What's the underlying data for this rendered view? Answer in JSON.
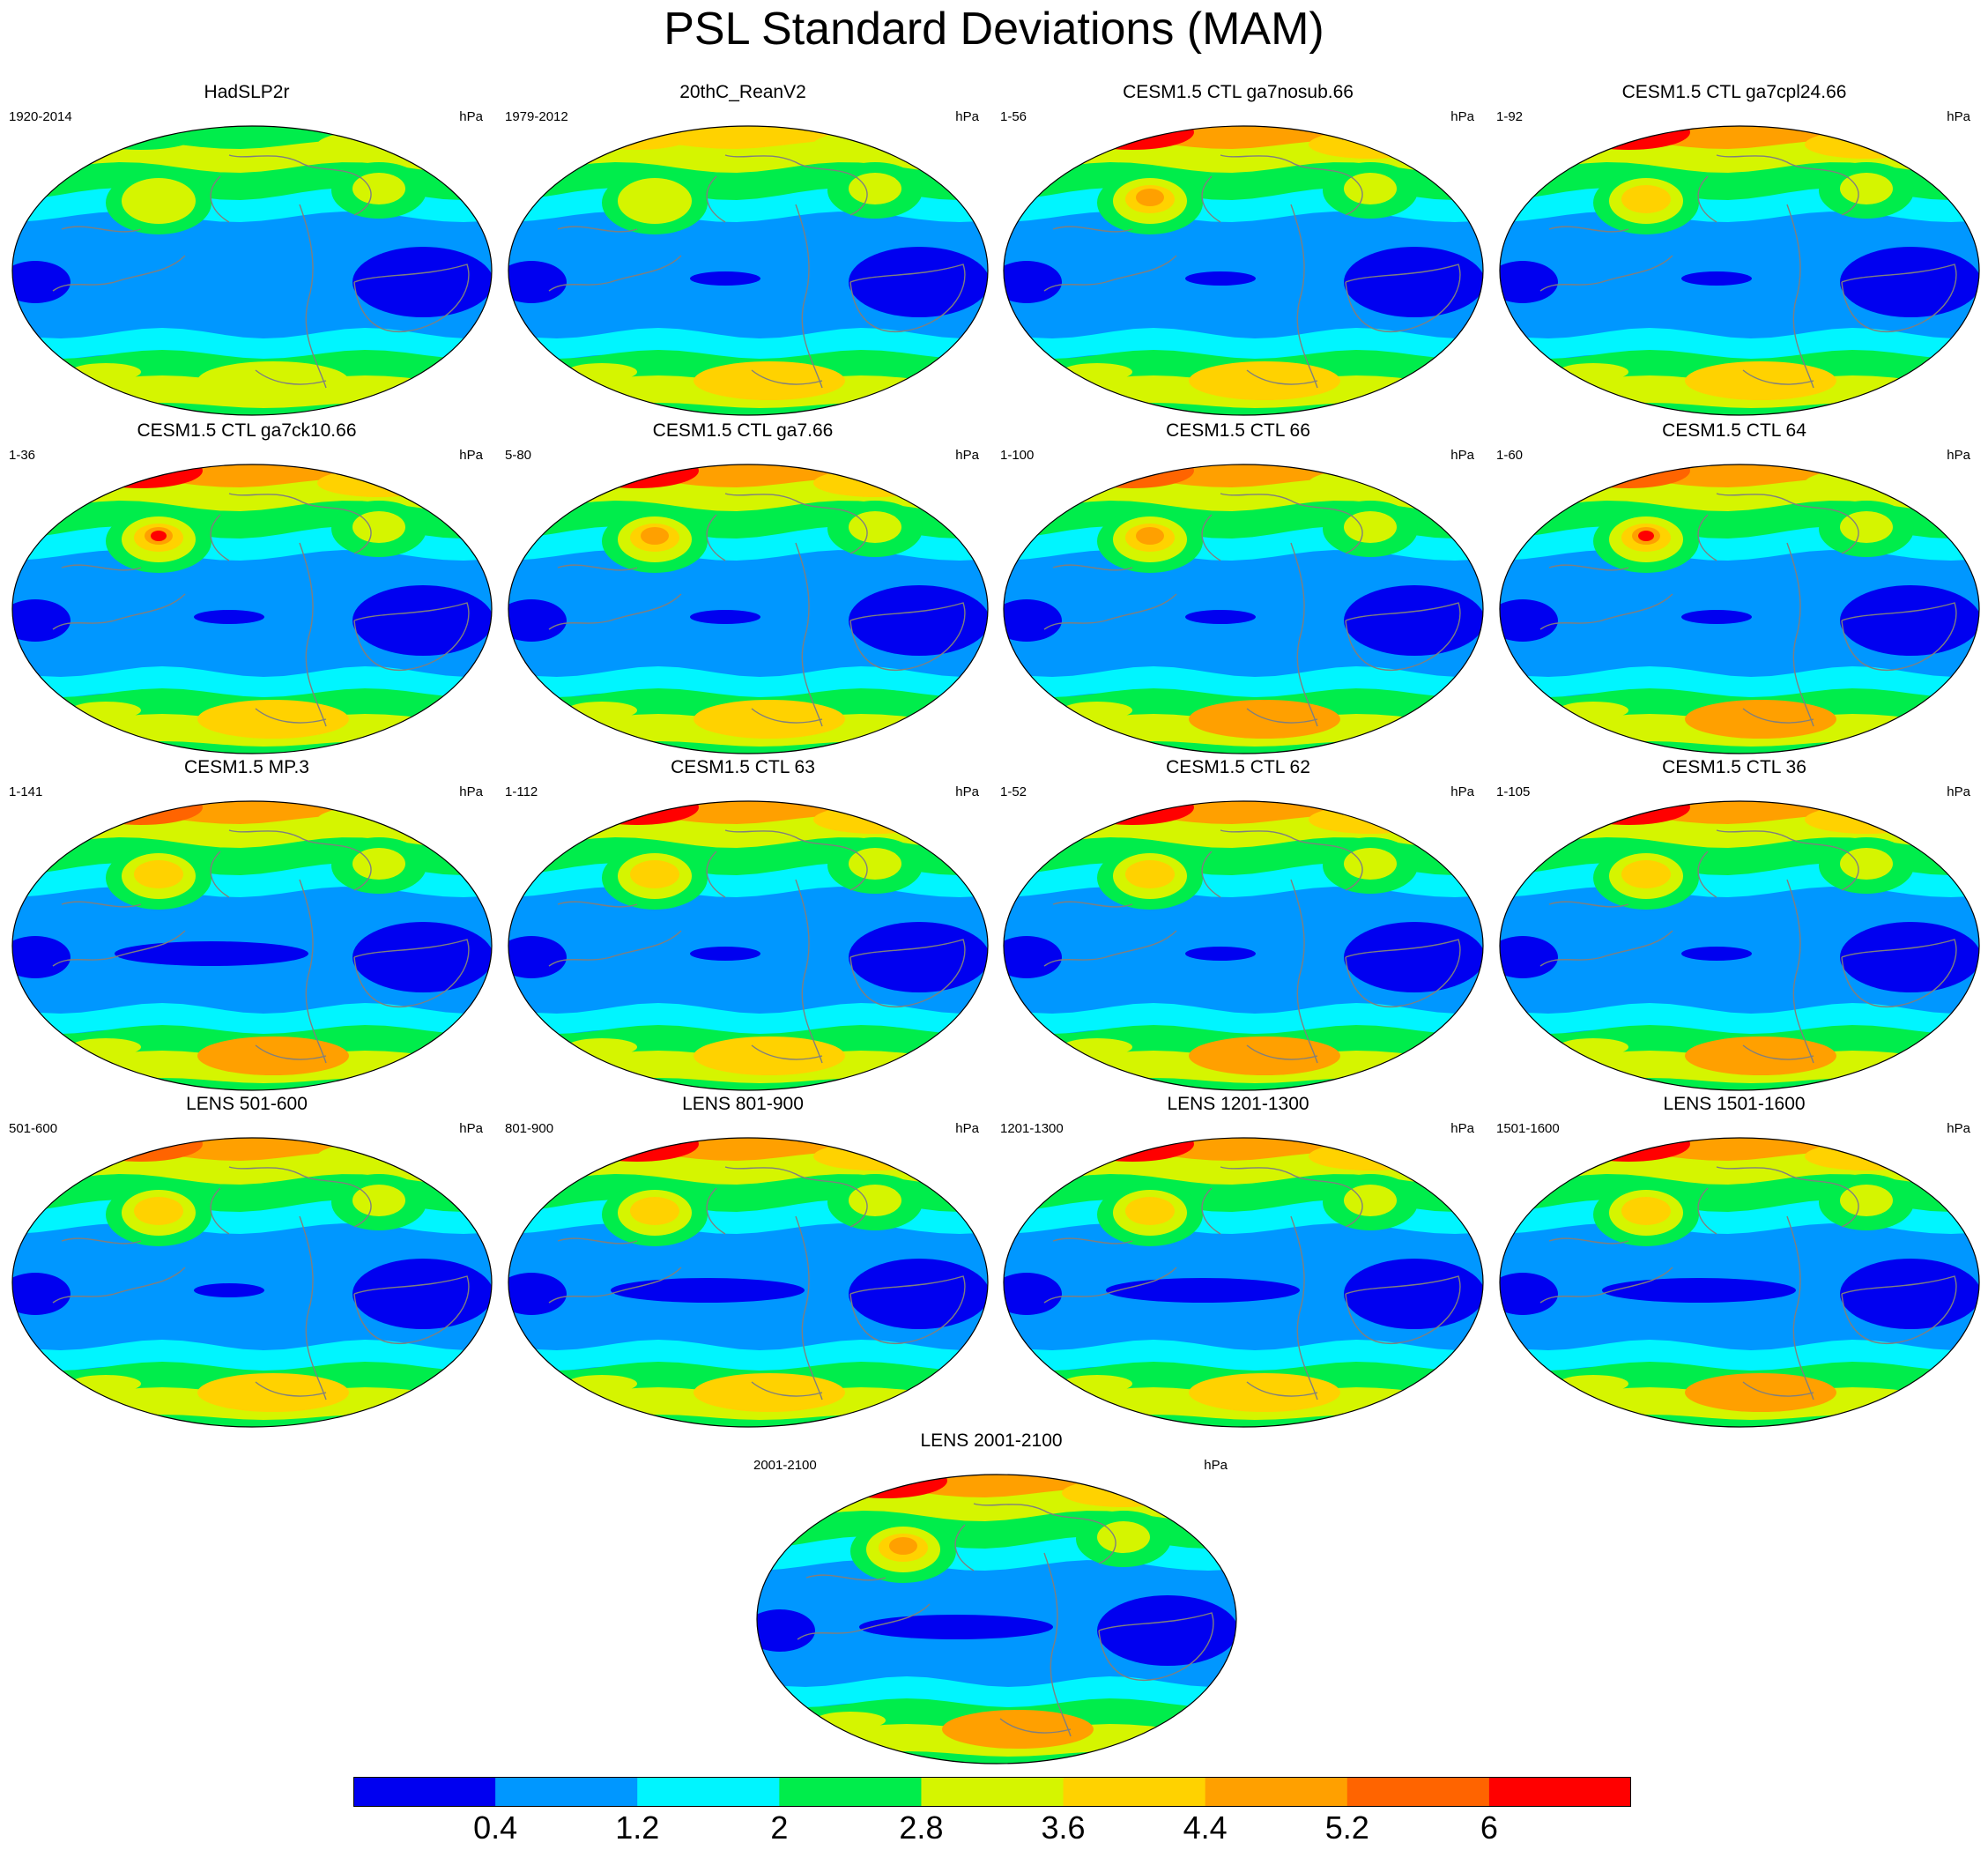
{
  "figure": {
    "title": "PSL Standard Deviations (MAM)"
  },
  "legend": {
    "colors": [
      "#0000f0",
      "#0097ff",
      "#00f5ff",
      "#00ed4b",
      "#d5f500",
      "#ffd200",
      "#ffa000",
      "#ff6400",
      "#ff0000"
    ],
    "labels": [
      "0.4",
      "1.2",
      "2",
      "2.8",
      "3.6",
      "4.4",
      "5.2",
      "6"
    ]
  },
  "panels": [
    {
      "title": "HadSLP2r",
      "period": "1920-2014",
      "units": "hPa",
      "nh_peak": 3,
      "aleutian": 3,
      "sh": 4,
      "tropic": 0
    },
    {
      "title": "20thC_ReanV2",
      "period": "1979-2012",
      "units": "hPa",
      "nh_peak": 5,
      "aleutian": 4,
      "sh": 5,
      "tropic": 1
    },
    {
      "title": "CESM1.5 CTL ga7nosub.66",
      "period": "1-56",
      "units": "hPa",
      "nh_peak": 8,
      "aleutian": 6,
      "sh": 5,
      "tropic": 1
    },
    {
      "title": "CESM1.5 CTL ga7cpl24.66",
      "period": "1-92",
      "units": "hPa",
      "nh_peak": 8,
      "aleutian": 5,
      "sh": 5,
      "tropic": 1
    },
    {
      "title": "CESM1.5 CTL ga7ck10.66",
      "period": "1-36",
      "units": "hPa",
      "nh_peak": 8,
      "aleutian": 8,
      "sh": 5,
      "tropic": 1
    },
    {
      "title": "CESM1.5 CTL ga7.66",
      "period": "5-80",
      "units": "hPa",
      "nh_peak": 8,
      "aleutian": 6,
      "sh": 5,
      "tropic": 1
    },
    {
      "title": "CESM1.5 CTL 66",
      "period": "1-100",
      "units": "hPa",
      "nh_peak": 7,
      "aleutian": 6,
      "sh": 6,
      "tropic": 1
    },
    {
      "title": "CESM1.5 CTL 64",
      "period": "1-60",
      "units": "hPa",
      "nh_peak": 7,
      "aleutian": 7,
      "sh": 6,
      "tropic": 1
    },
    {
      "title": "CESM1.5 MP.3",
      "period": "1-141",
      "units": "hPa",
      "nh_peak": 7,
      "aleutian": 5,
      "sh": 6,
      "tropic": 2
    },
    {
      "title": "CESM1.5 CTL 63",
      "period": "1-112",
      "units": "hPa",
      "nh_peak": 8,
      "aleutian": 5,
      "sh": 5,
      "tropic": 1
    },
    {
      "title": "CESM1.5 CTL 62",
      "period": "1-52",
      "units": "hPa",
      "nh_peak": 8,
      "aleutian": 5,
      "sh": 6,
      "tropic": 1
    },
    {
      "title": "CESM1.5 CTL 36",
      "period": "1-105",
      "units": "hPa",
      "nh_peak": 8,
      "aleutian": 5,
      "sh": 6,
      "tropic": 1
    },
    {
      "title": "LENS 501-600",
      "period": "501-600",
      "units": "hPa",
      "nh_peak": 7,
      "aleutian": 5,
      "sh": 5,
      "tropic": 1
    },
    {
      "title": "LENS 801-900",
      "period": "801-900",
      "units": "hPa",
      "nh_peak": 8,
      "aleutian": 5,
      "sh": 5,
      "tropic": 2
    },
    {
      "title": "LENS 1201-1300",
      "period": "1201-1300",
      "units": "hPa",
      "nh_peak": 8,
      "aleutian": 5,
      "sh": 5,
      "tropic": 2
    },
    {
      "title": "LENS 1501-1600",
      "period": "1501-1600",
      "units": "hPa",
      "nh_peak": 8,
      "aleutian": 5,
      "sh": 6,
      "tropic": 2
    },
    {
      "title": "LENS 2001-2100",
      "period": "2001-2100",
      "units": "hPa",
      "nh_peak": 8,
      "aleutian": 6,
      "sh": 6,
      "tropic": 2
    }
  ]
}
